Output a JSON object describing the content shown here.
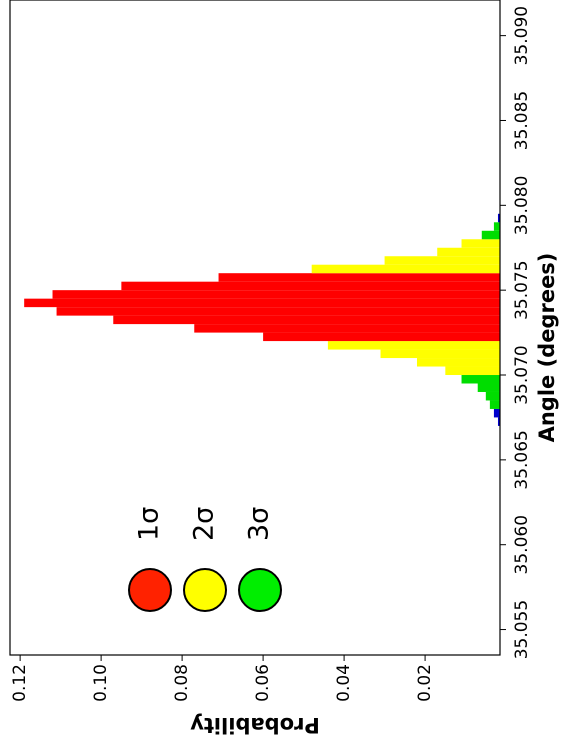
{
  "chart_data": {
    "type": "histogram",
    "x_label": "Angle (degrees)",
    "y_label": "Probability",
    "bins": [
      35.067,
      35.0675,
      35.068,
      35.0685,
      35.069,
      35.0695,
      35.07,
      35.0705,
      35.071,
      35.0715,
      35.072,
      35.0725,
      35.073,
      35.0735,
      35.074,
      35.0745,
      35.075,
      35.0755,
      35.076,
      35.0765,
      35.077,
      35.0775,
      35.078,
      35.0785,
      35.079,
      35.0795
    ],
    "values": [
      0.002,
      0.003,
      0.004,
      0.005,
      0.007,
      0.011,
      0.015,
      0.022,
      0.031,
      0.044,
      0.06,
      0.077,
      0.097,
      0.111,
      0.119,
      0.112,
      0.095,
      0.071,
      0.048,
      0.03,
      0.017,
      0.011,
      0.006,
      0.003,
      0.002
    ],
    "bar_colors": [
      "#0000cc",
      "#0000cc",
      "#00dd00",
      "#00dd00",
      "#00dd00",
      "#00dd00",
      "#ffff00",
      "#ffff00",
      "#ffff00",
      "#ffff00",
      "#ff0000",
      "#ff0000",
      "#ff0000",
      "#ff0000",
      "#ff0000",
      "#ff0000",
      "#ff0000",
      "#ff0000",
      "#ffff00",
      "#ffff00",
      "#ffff00",
      "#ffff00",
      "#00dd00",
      "#00dd00",
      "#0000cc"
    ],
    "legend": [
      {
        "label": "1σ",
        "color": "#ff2200"
      },
      {
        "label": "2σ",
        "color": "#ffff00"
      },
      {
        "label": "3σ",
        "color": "#00ee00"
      }
    ],
    "xlim": [
      35.0535,
      35.0921
    ],
    "xticks": [
      35.055,
      {
        "value": 35.06,
        "label": "35.060"
      },
      35.065,
      {
        "value": 35.07,
        "label": "35.070"
      },
      35.075,
      {
        "value": 35.08,
        "label": "35.080"
      },
      35.085,
      {
        "value": 35.09,
        "label": "35.090"
      }
    ],
    "ylim": [
      0.0015,
      0.1225
    ],
    "yticks": [
      0.02,
      0.04,
      0.06,
      0.08,
      {
        "value": 0.1,
        "label": "0.10"
      },
      0.12
    ]
  }
}
